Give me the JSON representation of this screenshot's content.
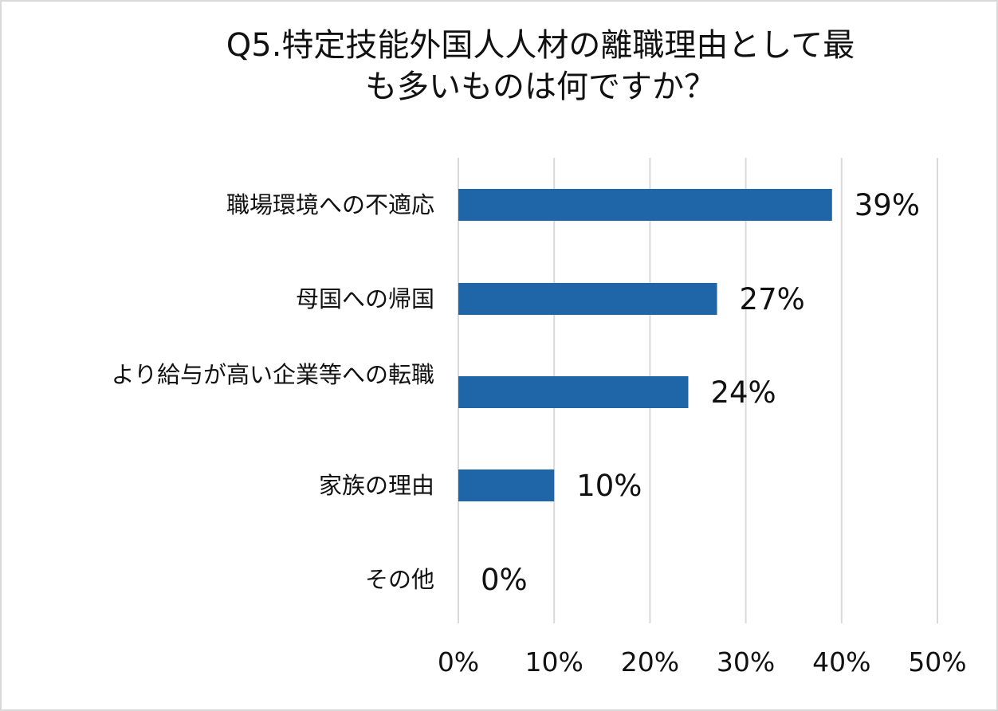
{
  "chart_data": {
    "type": "bar",
    "orientation": "horizontal",
    "title_lines": [
      "Q5.特定技能外国人人材の離職理由として最",
      "も多いものは何ですか？"
    ],
    "categories": [
      "職場環境への不適応",
      "母国への帰国",
      "より給与が高い企業等への転職",
      "家族の理由",
      "その他"
    ],
    "values": [
      39,
      27,
      24,
      10,
      0
    ],
    "value_suffix": "%",
    "xlim": [
      0,
      50
    ],
    "x_ticks": [
      0,
      10,
      20,
      30,
      40,
      50
    ],
    "x_tick_labels": [
      "0%",
      "10%",
      "20%",
      "30%",
      "40%",
      "50%"
    ],
    "xlabel": "",
    "ylabel": "",
    "grid": true,
    "bar_color": "#1f66a8",
    "grid_color": "#d9d9d9",
    "legend": "none"
  }
}
